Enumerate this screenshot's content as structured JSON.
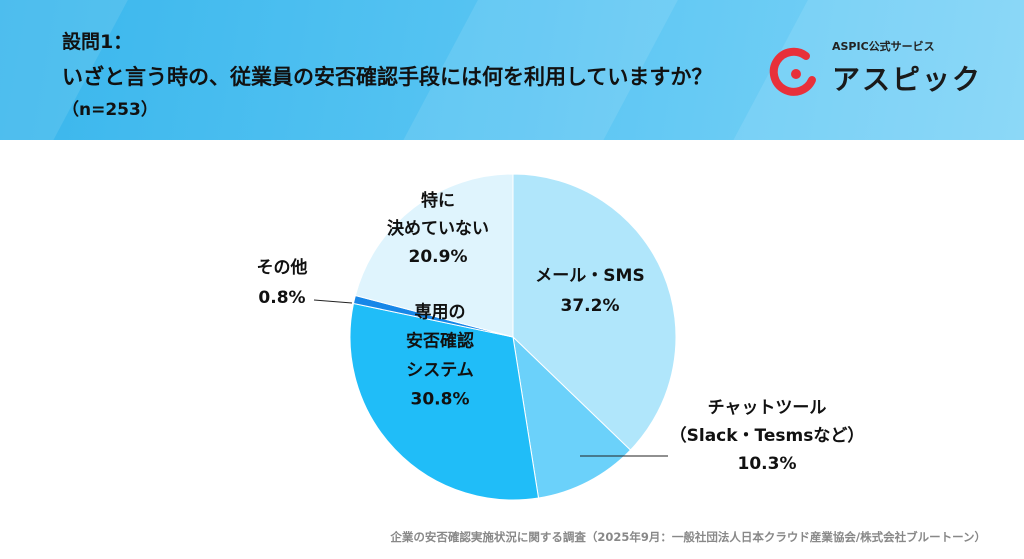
{
  "header": {
    "question_no": "設問1：",
    "question": "いざと言う時の、従業員の安否確認手段には何を利用していますか？",
    "sample": "（n=253）"
  },
  "logo": {
    "sub": "ASPIC公式サービス",
    "main": "アスピック"
  },
  "chart_data": {
    "type": "pie",
    "start": "top",
    "direction": "clockwise",
    "slices": [
      {
        "label_lines": [
          "メール・SMS"
        ],
        "value": 37.2,
        "value_label": "37.2%",
        "color": "#b0e6fb",
        "label_pos": "inside"
      },
      {
        "label_lines": [
          "チャットツール",
          "（Slack・Tesmsなど）"
        ],
        "value": 10.3,
        "value_label": "10.3%",
        "color": "#6bd1fa",
        "label_pos": "outside-right"
      },
      {
        "label_lines": [
          "専用の",
          "安否確認",
          "システム"
        ],
        "value": 30.8,
        "value_label": "30.8%",
        "color": "#20bdf8",
        "label_pos": "inside"
      },
      {
        "label_lines": [
          "その他"
        ],
        "value": 0.8,
        "value_label": "0.8%",
        "color": "#1787e8",
        "label_pos": "outside-left"
      },
      {
        "label_lines": [
          "特に",
          "決めていない"
        ],
        "value": 20.9,
        "value_label": "20.9%",
        "color": "#dff4fd",
        "label_pos": "inside"
      }
    ]
  },
  "footer": {
    "source": "企業の安否確認実施状況に関する調査（2025年9月：一般社団法人日本クラウド産業協会/株式会社ブルートーン）"
  }
}
